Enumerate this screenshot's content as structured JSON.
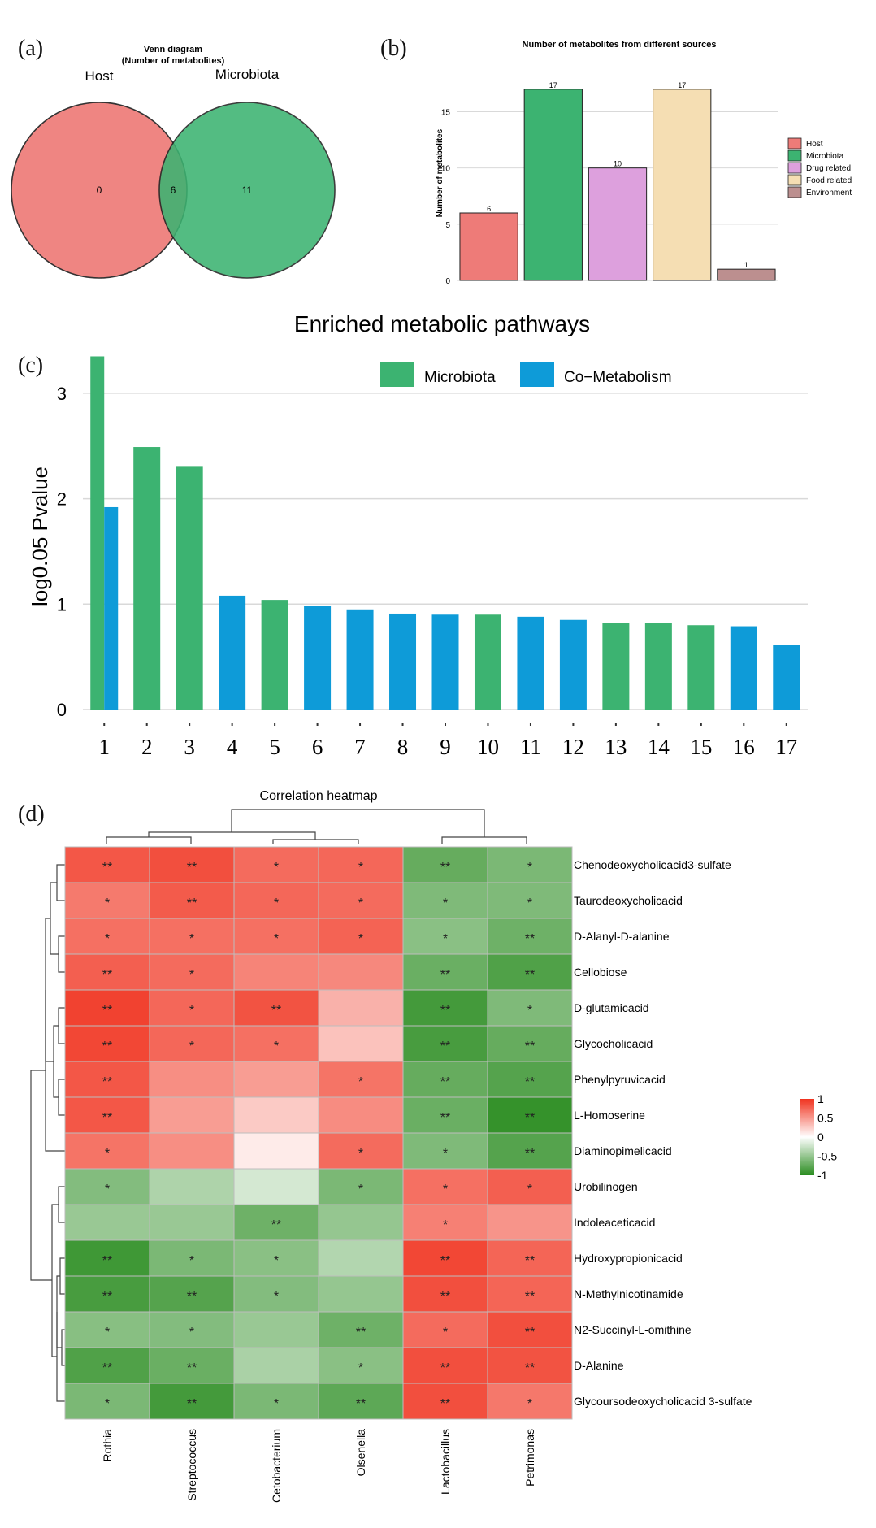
{
  "panels": {
    "a": "(a)",
    "b": "(b)",
    "c": "(c)",
    "d": "(d)"
  },
  "colors": {
    "host": "#ee7b78",
    "microbiota": "#3cb371",
    "drug": "#dda0dd",
    "food": "#f5deb3",
    "environment": "#bc8f8f",
    "co_metabolism": "#0e9bd8",
    "heat_pos": "#f0321e",
    "heat_neg": "#2a8c20",
    "grid": "#d9d9d9"
  },
  "chart_data": [
    {
      "id": "venn",
      "type": "venn",
      "title_line1": "Venn diagram",
      "title_line2": "(Number of metabolites)",
      "sets": [
        {
          "name": "Host",
          "only": "0",
          "color": "#ee7b78"
        },
        {
          "name": "Microbiota",
          "only": "11",
          "color": "#3cb371"
        }
      ],
      "intersection": "6"
    },
    {
      "id": "sources",
      "type": "bar",
      "title": "Number of metabolites from different sources",
      "ylabel": "Number of metabolites",
      "ylim": [
        0,
        18
      ],
      "yticks": [
        0,
        5,
        10,
        15
      ],
      "categories": [
        "Host",
        "Microbiota",
        "Drug related",
        "Food related",
        "Environment"
      ],
      "values": [
        6,
        17,
        10,
        17,
        1
      ],
      "value_labels": [
        "6",
        "17",
        "10",
        "17",
        "1"
      ],
      "bar_colors": [
        "#ee7b78",
        "#3cb371",
        "#dda0dd",
        "#f5deb3",
        "#bc8f8f"
      ],
      "legend": [
        "Host",
        "Microbiota",
        "Drug related",
        "Food related",
        "Environment"
      ]
    },
    {
      "id": "pathways",
      "type": "bar",
      "title": "Enriched metabolic pathways",
      "ylabel": "log0.05 Pvalue",
      "ylim": [
        0,
        3.4
      ],
      "yticks": [
        0,
        1,
        2,
        3
      ],
      "legend": [
        {
          "name": "Microbiota",
          "color": "#3cb371"
        },
        {
          "name": "Co−Metabolism",
          "color": "#0e9bd8"
        }
      ],
      "categories": [
        "1",
        "2",
        "3",
        "4",
        "5",
        "6",
        "7",
        "8",
        "9",
        "10",
        "11",
        "12",
        "13",
        "14",
        "15",
        "16",
        "17"
      ],
      "series": [
        {
          "name": "Microbiota",
          "values": [
            3.35,
            2.49,
            2.31,
            null,
            1.04,
            null,
            null,
            null,
            null,
            0.9,
            null,
            null,
            0.82,
            0.82,
            0.8,
            null,
            null
          ]
        },
        {
          "name": "Co−Metabolism",
          "values": [
            1.92,
            null,
            null,
            1.08,
            null,
            0.98,
            0.95,
            0.91,
            0.9,
            null,
            0.88,
            0.85,
            null,
            null,
            null,
            0.79,
            0.61
          ]
        }
      ]
    },
    {
      "id": "heatmap",
      "type": "heatmap",
      "title": "Correlation heatmap",
      "columns": [
        "Rothia",
        "Streptococcus",
        "Cetobacterium",
        "Olsenella",
        "Lactobacillus",
        "Petrimonas"
      ],
      "rows": [
        "Chenodeoxycholicacid3-sulfate",
        "Taurodeoxycholicacid",
        "D-Alanyl-D-alanine",
        "Cellobiose",
        "D-glutamicacid",
        "Glycocholicacid",
        "Phenylpyruvicacid",
        "L-Homoserine",
        "Diaminopimelicacid",
        "Urobilinogen",
        "Indoleaceticacid",
        "Hydroxypropionicacid",
        "N-Methylnicotinamide",
        "N2-Succinyl-L-omithine",
        "D-Alanine",
        "Glycoursodeoxycholicacid 3-sulfate"
      ],
      "values": [
        [
          0.82,
          0.86,
          0.72,
          0.74,
          -0.72,
          -0.62
        ],
        [
          0.65,
          0.8,
          0.74,
          0.72,
          -0.6,
          -0.6
        ],
        [
          0.7,
          0.7,
          0.7,
          0.76,
          -0.55,
          -0.68
        ],
        [
          0.78,
          0.72,
          0.6,
          0.58,
          -0.7,
          -0.82
        ],
        [
          0.92,
          0.74,
          0.84,
          0.38,
          -0.88,
          -0.6
        ],
        [
          0.9,
          0.74,
          0.7,
          0.3,
          -0.86,
          -0.72
        ],
        [
          0.82,
          0.55,
          0.48,
          0.68,
          -0.72,
          -0.8
        ],
        [
          0.82,
          0.48,
          0.26,
          0.56,
          -0.7,
          -0.95
        ],
        [
          0.68,
          0.55,
          0.1,
          0.72,
          -0.6,
          -0.8
        ],
        [
          -0.58,
          -0.38,
          -0.2,
          -0.62,
          0.7,
          0.78
        ],
        [
          -0.48,
          -0.48,
          -0.68,
          -0.5,
          0.62,
          0.52
        ],
        [
          -0.9,
          -0.62,
          -0.55,
          -0.36,
          0.9,
          0.75
        ],
        [
          -0.86,
          -0.8,
          -0.58,
          -0.5,
          0.86,
          0.75
        ],
        [
          -0.56,
          -0.58,
          -0.48,
          -0.68,
          0.72,
          0.86
        ],
        [
          -0.82,
          -0.7,
          -0.4,
          -0.55,
          0.86,
          0.84
        ],
        [
          -0.62,
          -0.88,
          -0.62,
          -0.76,
          0.86,
          0.66
        ]
      ],
      "significance": [
        [
          "**",
          "**",
          "*",
          "*",
          "**",
          "*"
        ],
        [
          "*",
          "**",
          "*",
          "*",
          "*",
          "*"
        ],
        [
          "*",
          "*",
          "*",
          "*",
          "*",
          "**"
        ],
        [
          "**",
          "*",
          "",
          "",
          "**",
          "**"
        ],
        [
          "**",
          "*",
          "**",
          "",
          "**",
          "*"
        ],
        [
          "**",
          "*",
          "*",
          "",
          "**",
          "**"
        ],
        [
          "**",
          "",
          "",
          "*",
          "**",
          "**"
        ],
        [
          "**",
          "",
          "",
          "",
          "**",
          "**"
        ],
        [
          "*",
          "",
          "",
          "*",
          "*",
          "**"
        ],
        [
          "*",
          "",
          "",
          "*",
          "*",
          "*"
        ],
        [
          "",
          "",
          "**",
          "",
          "*",
          ""
        ],
        [
          "**",
          "*",
          "*",
          "",
          "**",
          "**"
        ],
        [
          "**",
          "**",
          "*",
          "",
          "**",
          "**"
        ],
        [
          "*",
          "*",
          "",
          "**",
          "*",
          "**"
        ],
        [
          "**",
          "**",
          "",
          "*",
          "**",
          "**"
        ],
        [
          "*",
          "**",
          "*",
          "**",
          "**",
          "*"
        ]
      ],
      "colorbar_ticks": [
        "1",
        "0.5",
        "0",
        "-0.5",
        "-1"
      ],
      "colorbar_values": [
        1,
        0.5,
        0,
        -0.5,
        -1
      ]
    }
  ]
}
